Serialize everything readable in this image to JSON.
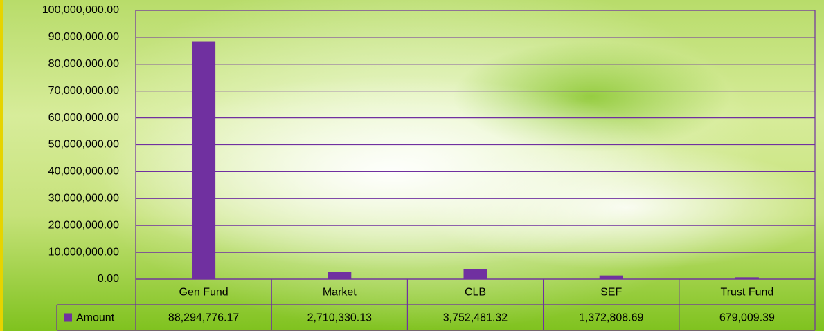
{
  "chart_data": {
    "type": "bar",
    "categories": [
      "Gen Fund",
      "Market",
      "CLB",
      "SEF",
      "Trust Fund"
    ],
    "series": [
      {
        "name": "Amount",
        "color": "#7030a0",
        "values": [
          88294776.17,
          2710330.13,
          3752481.32,
          1372808.69,
          679009.39
        ],
        "value_labels": [
          "88,294,776.17",
          "2,710,330.13",
          "3,752,481.32",
          "1,372,808.69",
          "679,009.39"
        ]
      }
    ],
    "ylim": [
      0,
      100000000
    ],
    "yticks": [
      {
        "value": 0,
        "label": "0.00"
      },
      {
        "value": 10000000,
        "label": "10,000,000.00"
      },
      {
        "value": 20000000,
        "label": "20,000,000.00"
      },
      {
        "value": 30000000,
        "label": "30,000,000.00"
      },
      {
        "value": 40000000,
        "label": "40,000,000.00"
      },
      {
        "value": 50000000,
        "label": "50,000,000.00"
      },
      {
        "value": 60000000,
        "label": "60,000,000.00"
      },
      {
        "value": 70000000,
        "label": "70,000,000.00"
      },
      {
        "value": 80000000,
        "label": "80,000,000.00"
      },
      {
        "value": 90000000,
        "label": "90,000,000.00"
      },
      {
        "value": 100000000,
        "label": "100,000,000.00"
      }
    ],
    "grid": true
  }
}
